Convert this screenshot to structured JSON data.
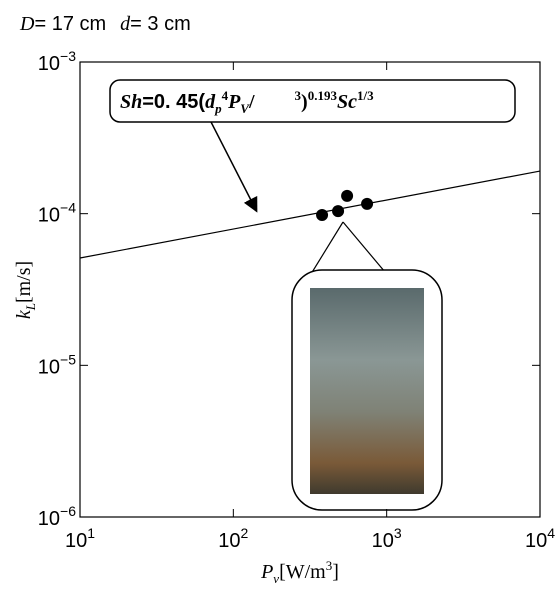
{
  "chart_data": {
    "type": "scatter",
    "title": {
      "D": "D",
      "eq1": "= 17 cm",
      "d": "d",
      "eq2": "= 3 cm"
    },
    "annotation": {
      "a": "Sh",
      "b": "=0. 45(",
      "c": "d",
      "d": "p",
      "e": "4",
      "f": "P",
      "g": "V",
      "h": "/",
      "i": "3",
      "j": ")",
      "k": "0.193",
      "l": "Sc",
      "m": "1/3"
    },
    "xlabel": {
      "main": "P",
      "sub": "v",
      "unit": "[W/m",
      "exp": "3",
      "close": "]"
    },
    "ylabel": {
      "main": "k",
      "sub": "L",
      "unit": "[m/s]"
    },
    "log_x": true,
    "log_y": true,
    "xlim": [
      10,
      10000
    ],
    "ylim": [
      1e-06,
      0.001
    ],
    "xticks": [
      {
        "value": 10,
        "label": "10",
        "exp": "1"
      },
      {
        "value": 100,
        "label": "10",
        "exp": "2"
      },
      {
        "value": 1000,
        "label": "10",
        "exp": "3"
      },
      {
        "value": 10000,
        "label": "10",
        "exp": "4"
      }
    ],
    "yticks": [
      {
        "value": 1e-06,
        "label": "10",
        "exp": "−6"
      },
      {
        "value": 1e-05,
        "label": "10",
        "exp": "−5"
      },
      {
        "value": 0.0001,
        "label": "10",
        "exp": "−4"
      },
      {
        "value": 0.001,
        "label": "10",
        "exp": "−3"
      }
    ],
    "points": {
      "color": "#000000",
      "x": [
        379,
        482,
        552,
        745
      ],
      "values": [
        9.8e-05,
        0.000104,
        0.000131,
        0.000116
      ]
    },
    "fit": {
      "color": "#000000",
      "x": [
        10,
        10000
      ],
      "values": [
        5.1e-05,
        0.000191
      ]
    }
  }
}
